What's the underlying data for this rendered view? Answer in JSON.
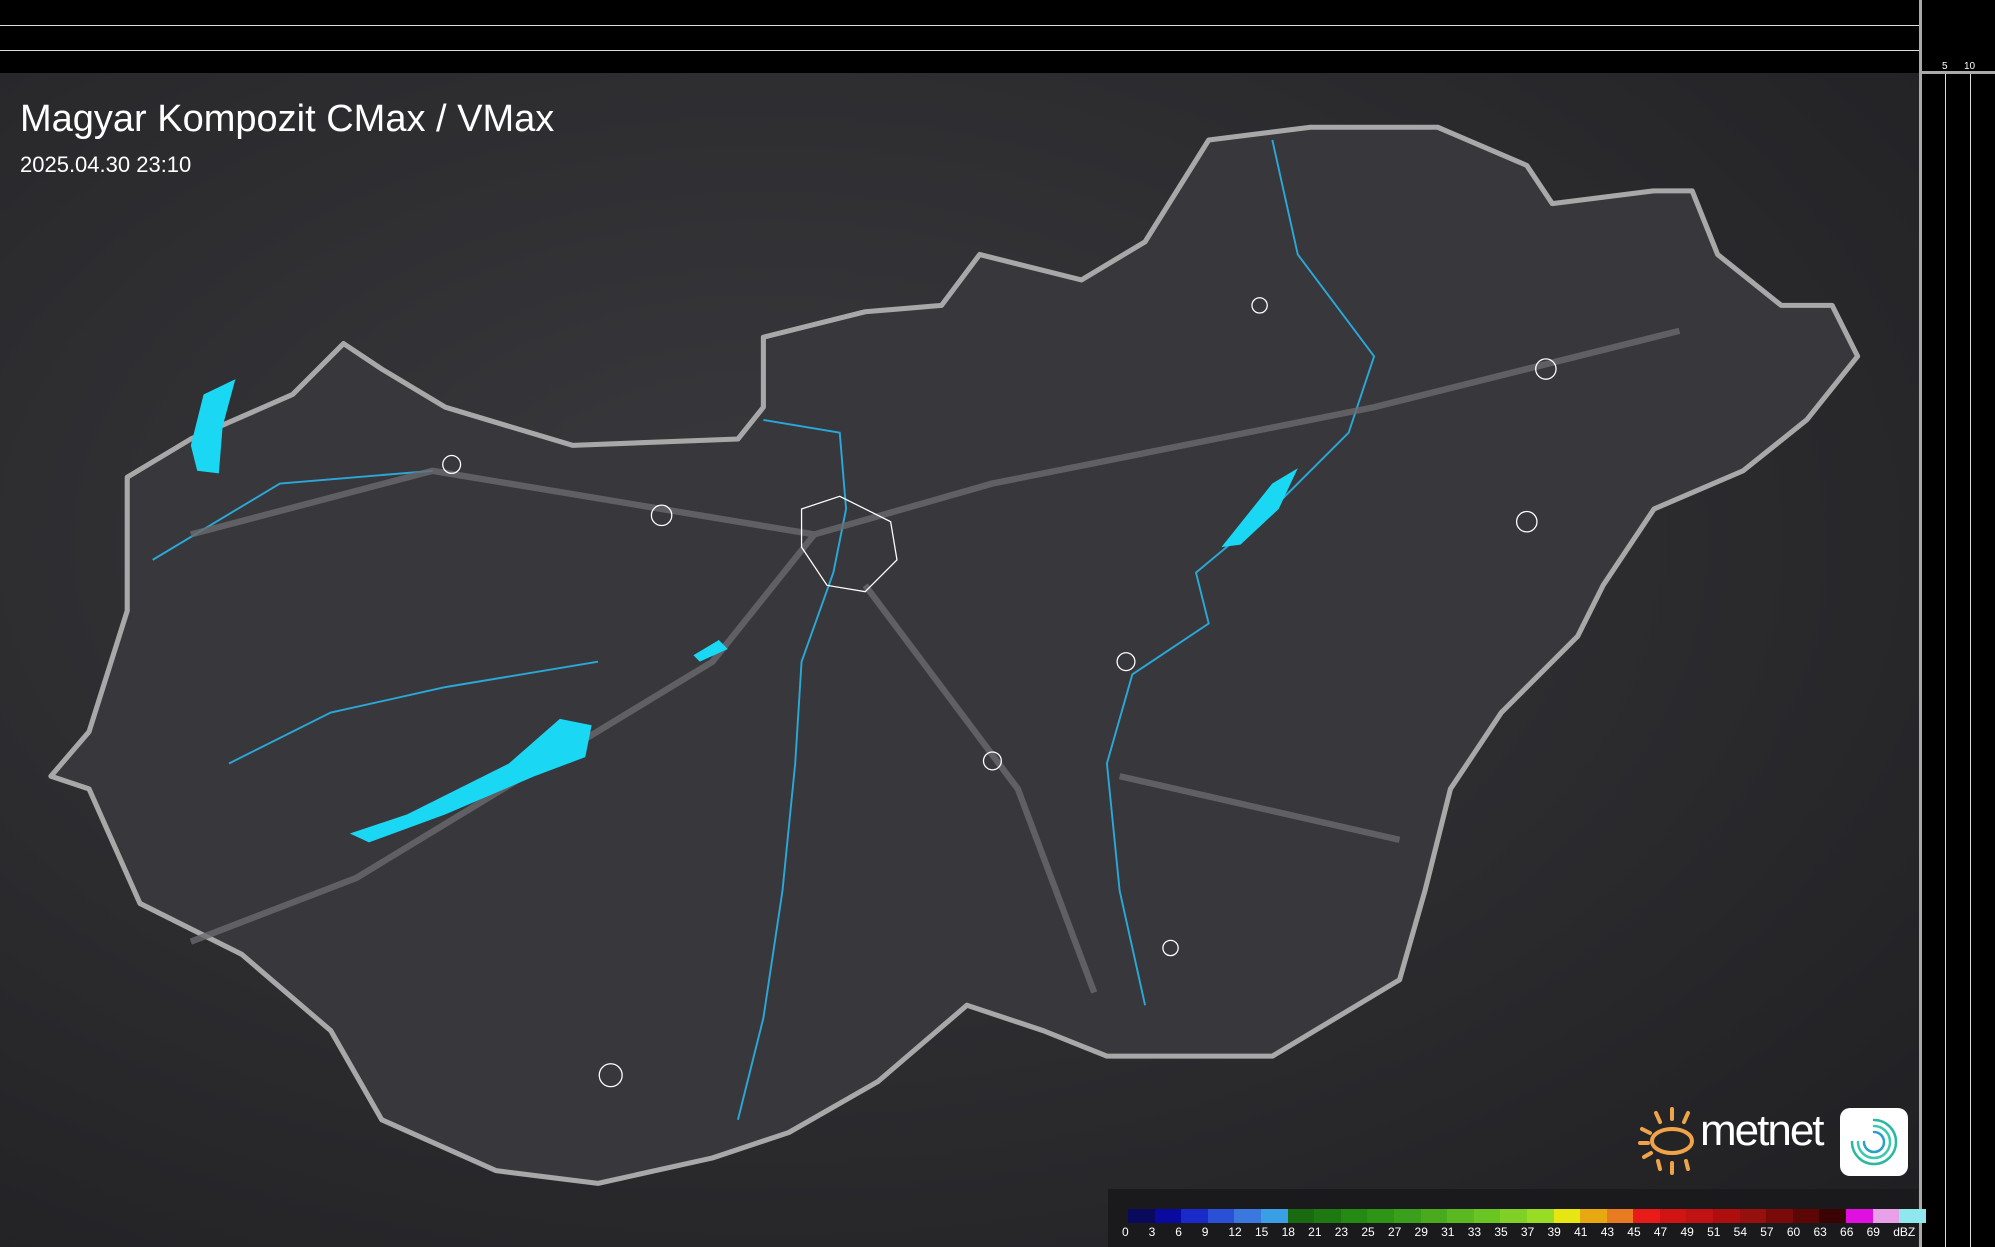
{
  "header": {
    "title": "Magyar Kompozit CMax / VMax",
    "timestamp": "2025.04.30 23:10"
  },
  "scale": {
    "vertical_ticks": [
      "10",
      "5"
    ],
    "horizontal_ticks": [
      "5",
      "10"
    ]
  },
  "legend": {
    "unit": "dBZ",
    "values": [
      "0",
      "3",
      "6",
      "9",
      "12",
      "15",
      "18",
      "21",
      "23",
      "25",
      "27",
      "29",
      "31",
      "33",
      "35",
      "37",
      "39",
      "41",
      "43",
      "45",
      "47",
      "49",
      "51",
      "54",
      "57",
      "60",
      "63",
      "66",
      "69"
    ],
    "colors": [
      "#0a0a5c",
      "#0a0aa0",
      "#1a2ac8",
      "#2a50d8",
      "#3a78e0",
      "#3aa0e6",
      "#1a6a12",
      "#1e7a10",
      "#258a14",
      "#2e9418",
      "#3aa01c",
      "#4aaa1e",
      "#5ab820",
      "#6ac422",
      "#80d026",
      "#98dc26",
      "#e8e612",
      "#e8a812",
      "#e87a20",
      "#e81a1a",
      "#d01414",
      "#c01212",
      "#ae0e0e",
      "#961010",
      "#7a0a0a",
      "#5c0606",
      "#3a0404",
      "#e010e0",
      "#e8a0e8",
      "#90e8ee"
    ]
  },
  "branding": {
    "logo_text": "metnet",
    "logo_color": "#f0a44a"
  },
  "map_colors": {
    "border": "#a8a8a8",
    "rivers": "#2aa8d8",
    "lakes": "#1ad8f4",
    "cities": "#ffffff"
  }
}
